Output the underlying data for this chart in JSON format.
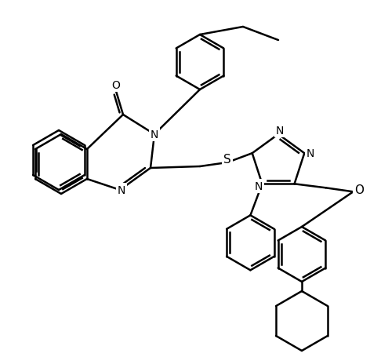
{
  "bg": "#ffffff",
  "lw": 1.5,
  "lw2": 1.0,
  "fs": 11,
  "atoms": {
    "N_label": "N",
    "N2_label": "N",
    "S_label": "S",
    "O_label": "O",
    "O2_label": "O"
  }
}
